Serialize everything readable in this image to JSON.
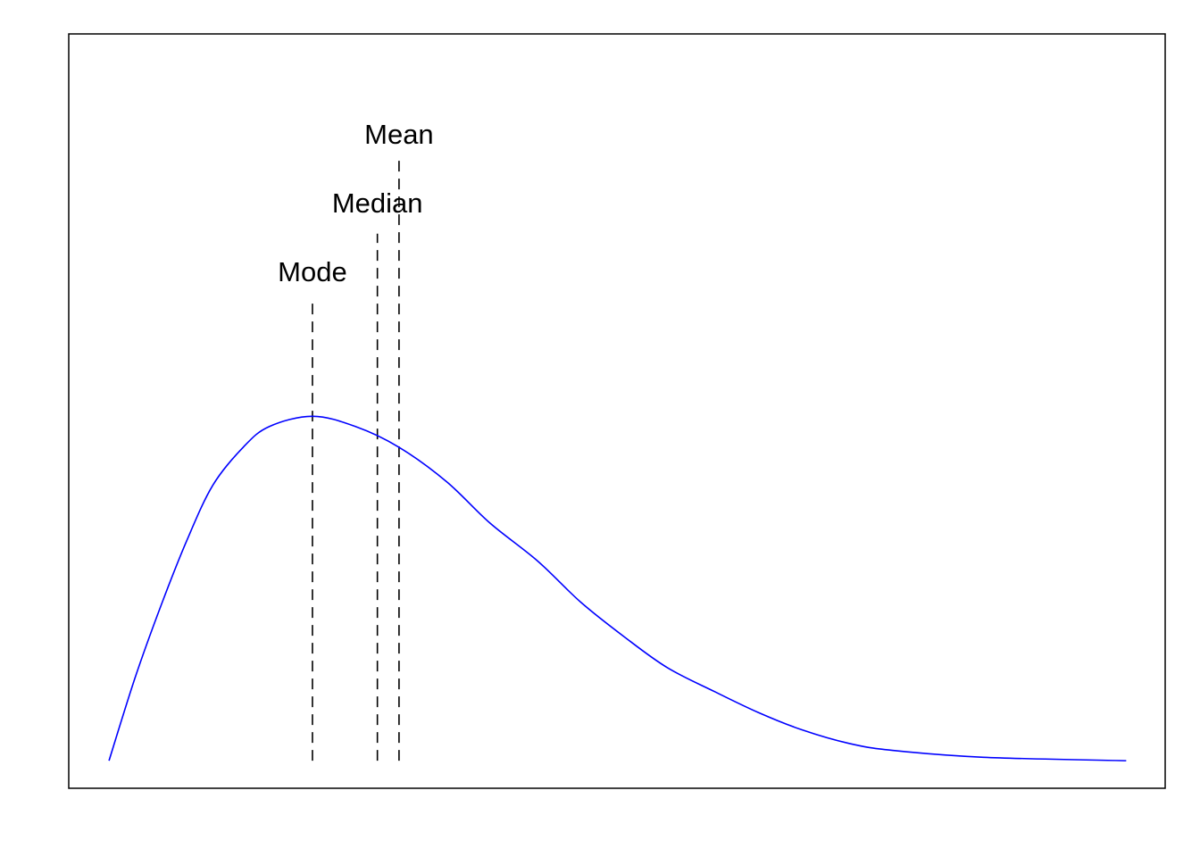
{
  "chart_data": {
    "type": "line",
    "title": "",
    "xlabel": "",
    "ylabel": "",
    "axes_shown": false,
    "grid": false,
    "xlim": [
      -0.93,
      24.4
    ],
    "ylim": [
      -0.08,
      2.11
    ],
    "series": [
      {
        "color": "#0000ff",
        "x": [
          0,
          0.6,
          1.2,
          1.8,
          2.4,
          3.1,
          3.7,
          4.7,
          5.7,
          6.7,
          7.8,
          8.8,
          9.9,
          10.9,
          11.9,
          12.9,
          14.0,
          15.0,
          16.0,
          17.1,
          18.1,
          20.2,
          23.5
        ],
        "y": [
          0,
          0.24,
          0.45,
          0.64,
          0.8,
          0.91,
          0.97,
          1.0,
          0.97,
          0.91,
          0.81,
          0.69,
          0.58,
          0.46,
          0.36,
          0.27,
          0.2,
          0.14,
          0.09,
          0.05,
          0.03,
          0.01,
          0.0
        ]
      }
    ],
    "annotations": [
      {
        "label": "Mode",
        "x": 4.7,
        "line_top": 1.34,
        "label_y": 1.42
      },
      {
        "label": "Median",
        "x": 6.2,
        "line_top": 1.53,
        "label_y": 1.62
      },
      {
        "label": "Mean",
        "x": 6.7,
        "line_top": 1.75,
        "label_y": 1.82
      }
    ],
    "line_color": "#000000"
  }
}
